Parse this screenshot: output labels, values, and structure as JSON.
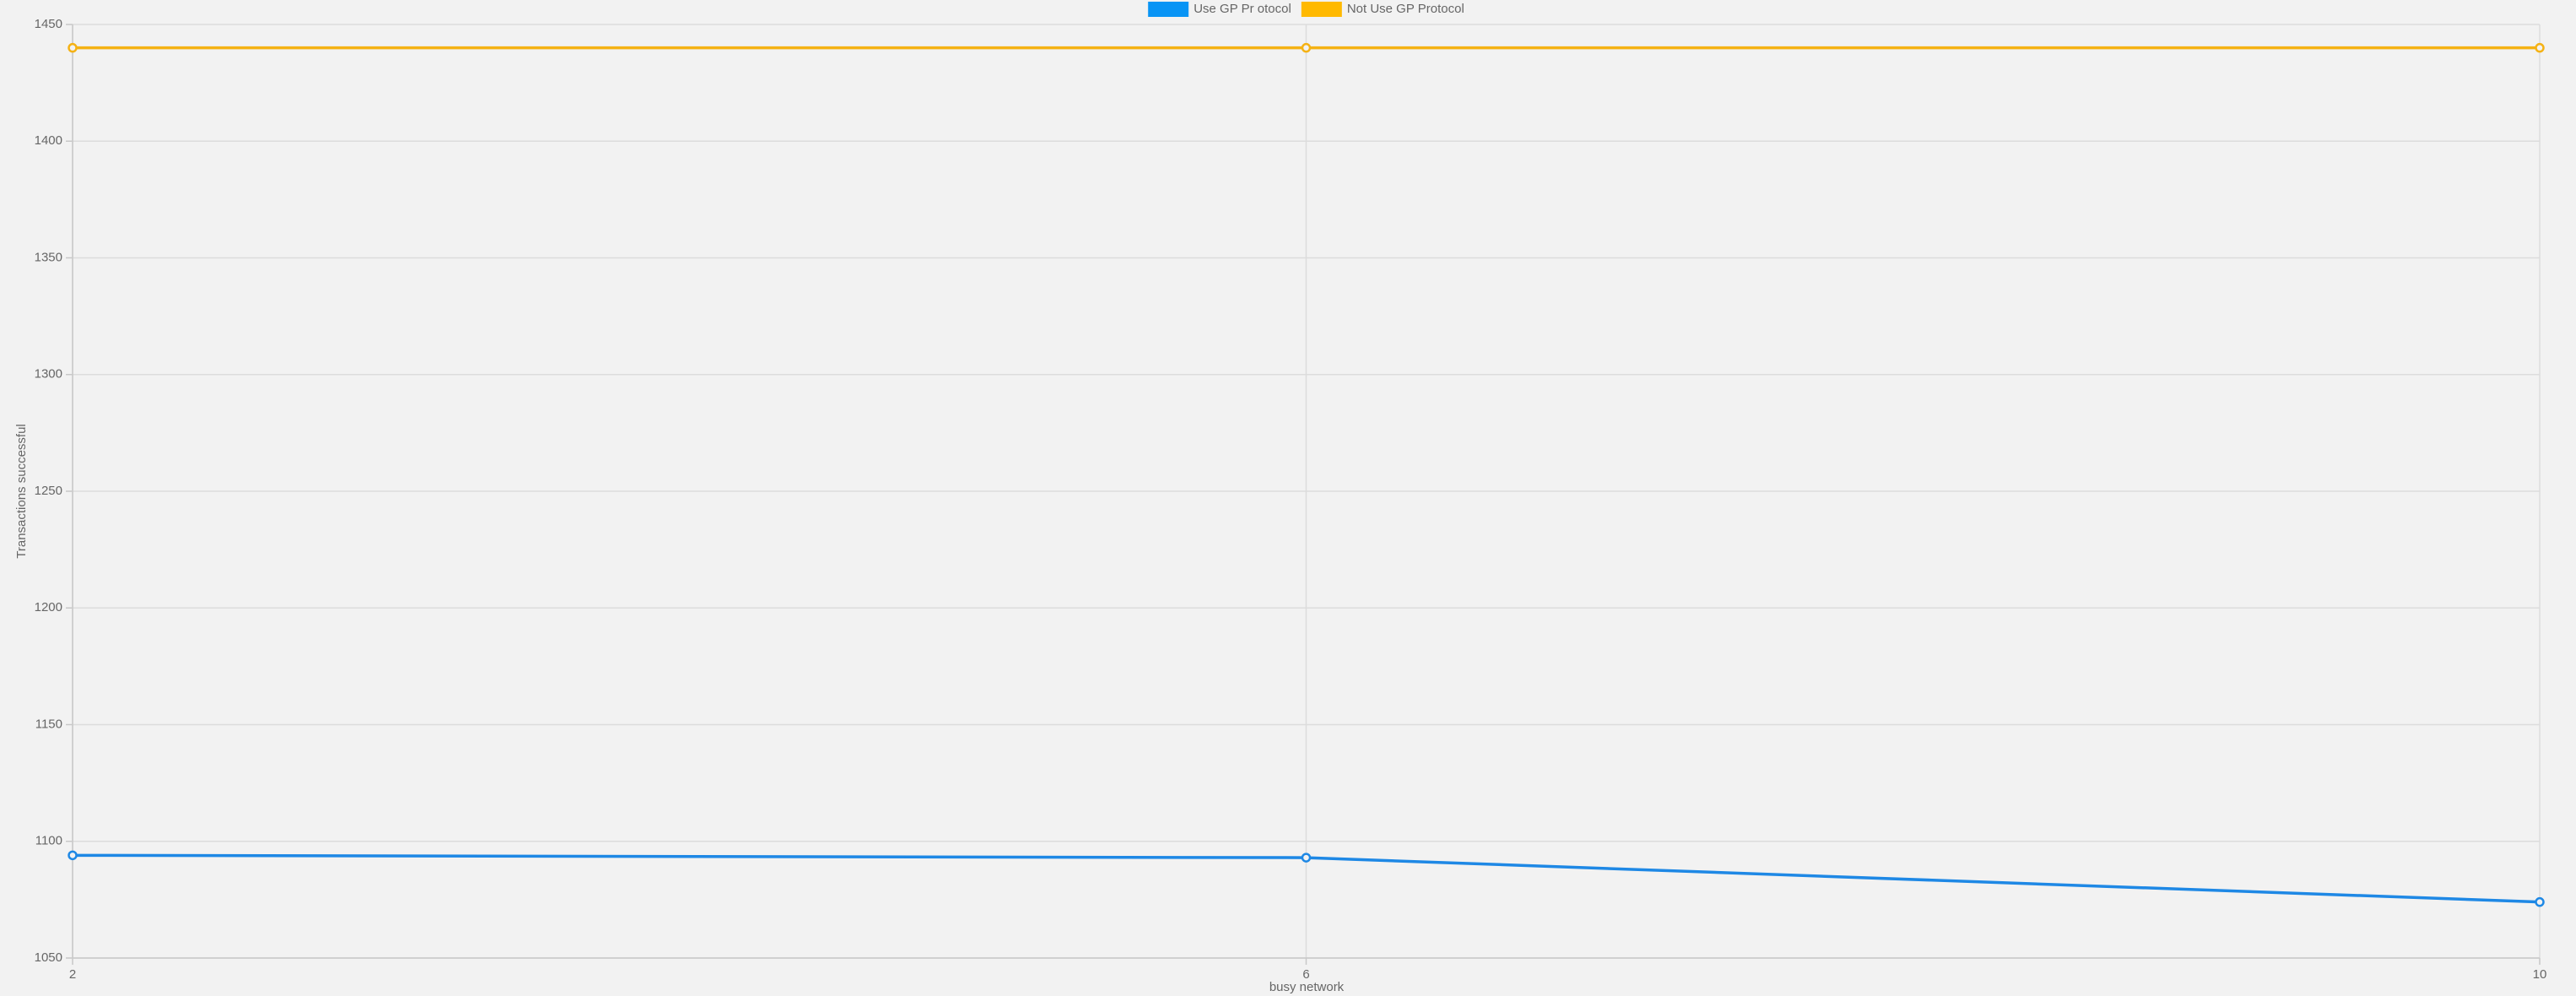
{
  "chart_data": {
    "type": "line",
    "x_label": "busy network",
    "y_label": "Transactions successful",
    "x": [
      2,
      6,
      10
    ],
    "xlim": [
      2,
      10
    ],
    "xticks": [
      2,
      6,
      10
    ],
    "ylim": [
      1050,
      1450
    ],
    "yticks": [
      1050,
      1100,
      1150,
      1200,
      1250,
      1300,
      1350,
      1400,
      1450
    ],
    "grid": true,
    "legend": "top",
    "series": [
      {
        "name": "Use GP Pr otocol",
        "color": "#1e88e5",
        "legend_color": "#0894f5",
        "values": [
          1094,
          1093,
          1074
        ]
      },
      {
        "name": "Not Use GP Protocol",
        "color": "#f5b214",
        "legend_color": "#ffb900",
        "values": [
          1440,
          1440,
          1440
        ]
      }
    ]
  }
}
